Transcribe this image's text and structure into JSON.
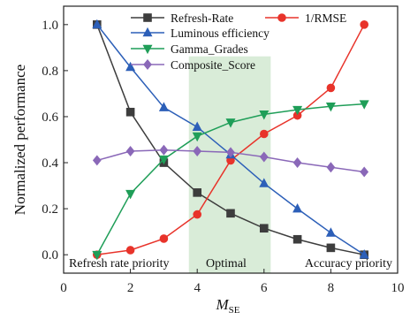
{
  "chart_data": {
    "type": "line",
    "xlabel": "M",
    "xlabel_sub": "SE",
    "ylabel": "Normalized performance",
    "xlim": [
      0,
      10
    ],
    "ylim": [
      -0.08,
      1.08
    ],
    "x_ticks": [
      "0",
      "2",
      "4",
      "6",
      "8",
      "10"
    ],
    "y_ticks": [
      "0.0",
      "0.2",
      "0.4",
      "0.6",
      "0.8",
      "1.0"
    ],
    "legend_position": "top",
    "region": {
      "x_start": 3.75,
      "x_end": 6.2,
      "color": "#d9ecd8"
    },
    "annotations": [
      "Refresh rate priority",
      "Optimal",
      "Accuracy priority"
    ],
    "x": [
      1,
      2,
      3,
      4,
      5,
      6,
      7,
      8,
      9
    ],
    "series": [
      {
        "name": "Refresh-Rate",
        "color": "#3d3d3d",
        "marker": "square",
        "values": [
          1.0,
          0.62,
          0.4,
          0.27,
          0.18,
          0.115,
          0.067,
          0.03,
          0.0
        ]
      },
      {
        "name": "1/RMSE",
        "color": "#e8332a",
        "marker": "circle",
        "values": [
          0.0,
          0.02,
          0.07,
          0.175,
          0.41,
          0.525,
          0.605,
          0.725,
          1.0
        ]
      },
      {
        "name": "Luminous efficiency",
        "color": "#2c5fb8",
        "marker": "triangle-up",
        "values": [
          1.0,
          0.815,
          0.64,
          0.555,
          0.435,
          0.31,
          0.2,
          0.095,
          0.0
        ]
      },
      {
        "name": "Gamma_Grades",
        "color": "#1f9e58",
        "marker": "triangle-down",
        "values": [
          0.0,
          0.265,
          0.415,
          0.515,
          0.575,
          0.61,
          0.63,
          0.645,
          0.655
        ]
      },
      {
        "name": "Composite_Score",
        "color": "#8a68b8",
        "marker": "diamond",
        "values": [
          0.41,
          0.45,
          0.455,
          0.45,
          0.445,
          0.425,
          0.4,
          0.38,
          0.36
        ]
      }
    ]
  }
}
